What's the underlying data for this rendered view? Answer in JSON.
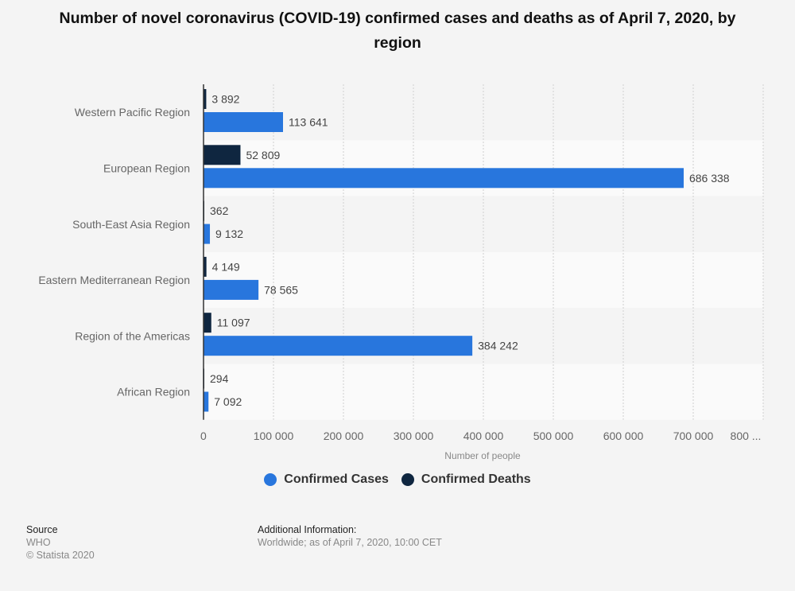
{
  "title": "Number of novel coronavirus (COVID-19) confirmed cases and deaths as of April 7, 2020, by region",
  "chart_data": {
    "type": "bar",
    "orientation": "horizontal",
    "title": "Number of novel coronavirus (COVID-19) confirmed cases and deaths as of April 7, 2020, by region",
    "categories": [
      "Western Pacific Region",
      "European Region",
      "South-East Asia Region",
      "Eastern Mediterranean Region",
      "Region of the Americas",
      "African Region"
    ],
    "series": [
      {
        "name": "Confirmed Deaths",
        "color": "#0f2640",
        "values": [
          3892,
          52809,
          362,
          4149,
          11097,
          294
        ],
        "labels": [
          "3 892",
          "52 809",
          "362",
          "4 149",
          "11 097",
          "294"
        ]
      },
      {
        "name": "Confirmed Cases",
        "color": "#2876dd",
        "values": [
          113641,
          686338,
          9132,
          78565,
          384242,
          7092
        ],
        "labels": [
          "113 641",
          "686 338",
          "9 132",
          "78 565",
          "384 242",
          "7 092"
        ]
      }
    ],
    "xlabel": "Number of people",
    "ylabel": "",
    "xlim": [
      0,
      800000
    ],
    "xticks": [
      0,
      100000,
      200000,
      300000,
      400000,
      500000,
      600000,
      700000,
      800000
    ],
    "xtick_labels": [
      "0",
      "100 000",
      "200 000",
      "300 000",
      "400 000",
      "500 000",
      "600 000",
      "700 000",
      "800 ..."
    ],
    "grid": true,
    "legend_position": "bottom"
  },
  "legend": [
    {
      "label": "Confirmed Cases",
      "color": "#2876dd"
    },
    {
      "label": "Confirmed Deaths",
      "color": "#0f2640"
    }
  ],
  "footer": {
    "source_heading": "Source",
    "source_value": "WHO",
    "copyright": "© Statista 2020",
    "additional_heading": "Additional Information:",
    "additional_value": "Worldwide; as of April 7, 2020, 10:00 CET"
  }
}
